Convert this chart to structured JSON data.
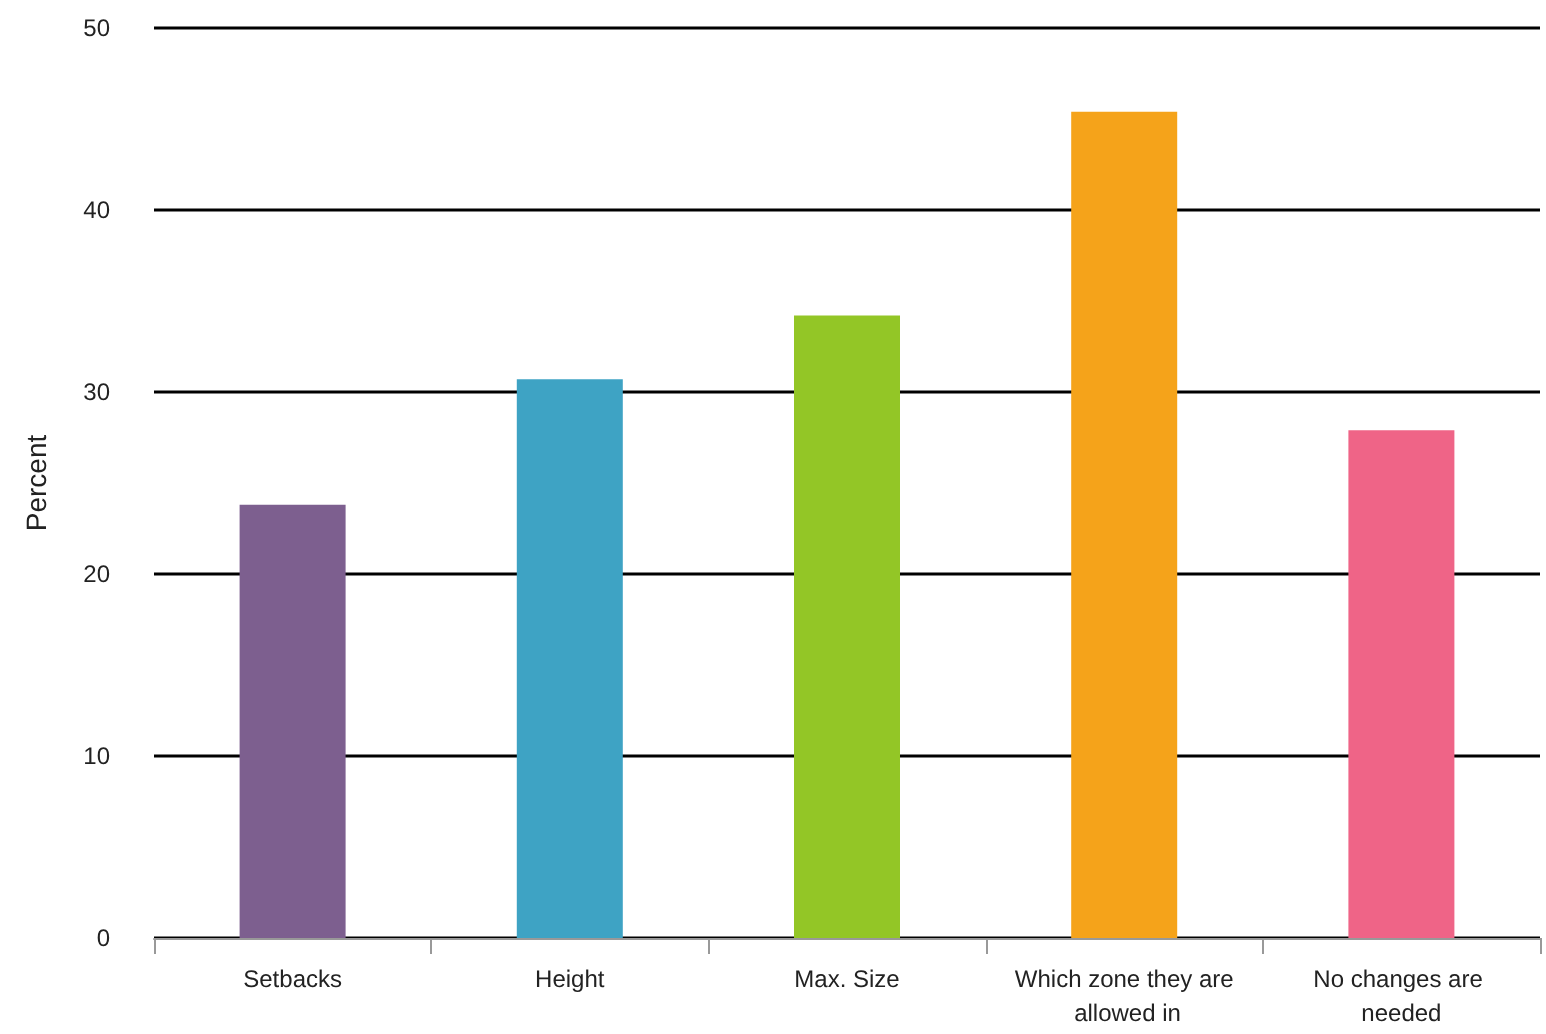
{
  "chart_data": {
    "type": "bar",
    "ylabel": "Percent",
    "categories": [
      "Setbacks",
      "Height",
      "Max. Size",
      "Which zone they are allowed in",
      "No changes are needed"
    ],
    "values": [
      23.8,
      30.7,
      34.2,
      45.4,
      27.9
    ],
    "colors": [
      "#7d5f8f",
      "#3ea3c4",
      "#93c626",
      "#f5a31a",
      "#ef6487"
    ],
    "ylim": [
      0,
      50
    ],
    "yticks": [
      0,
      10,
      20,
      30,
      40,
      50
    ],
    "grid": "y"
  }
}
